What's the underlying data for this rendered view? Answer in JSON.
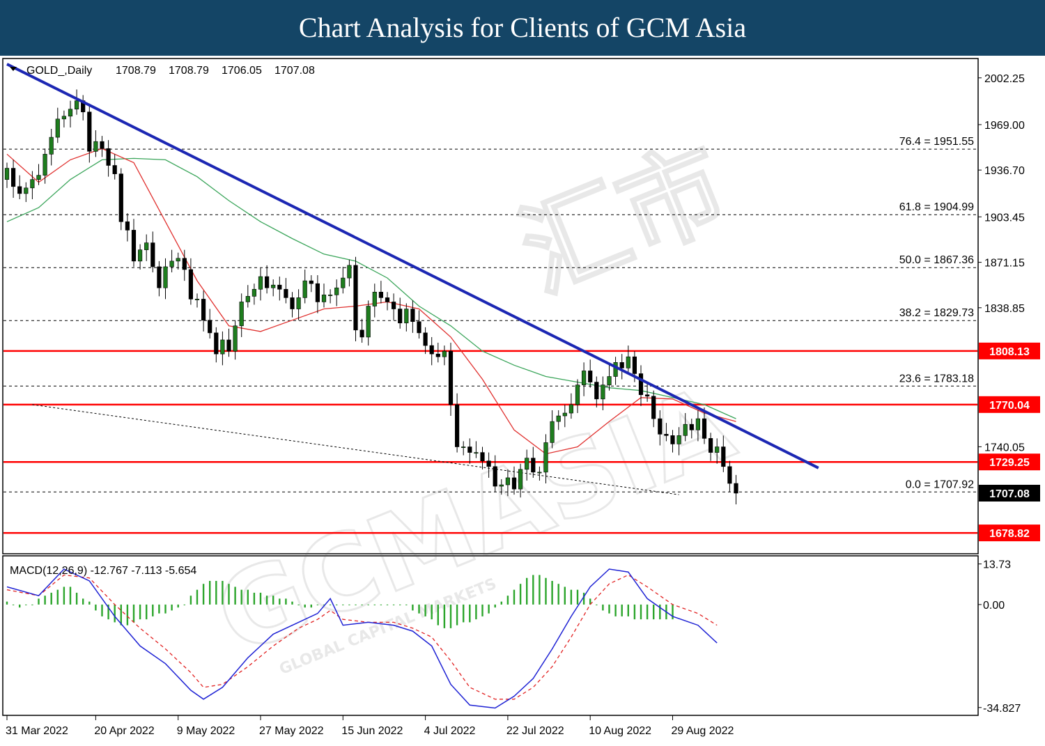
{
  "header": {
    "title": "Chart Analysis for Clients of GCM Asia"
  },
  "watermark": {
    "brand": "GCMASIA",
    "tagline": "GLOBAL CAPITAL MARKETS",
    "chinese": "汇市"
  },
  "colors": {
    "header_bg": "#144566",
    "bull": "#1e7d1e",
    "bear": "#000000",
    "ma_red": "#e0302e",
    "ma_green": "#3aa55a",
    "trendline": "#1c27b3",
    "support_red": "#ff0000",
    "macd_line": "#1e22d4",
    "signal_line": "#e22222",
    "histogram": "#2ba52b"
  },
  "chart_data": {
    "type": "candlestick",
    "symbol_label": "GOLD_,Daily",
    "ohlc_header": [
      "1708.79",
      "1708.79",
      "1706.05",
      "1707.08"
    ],
    "ylim": [
      1665,
      2015
    ],
    "y_ticks": [
      "2002.25",
      "1969.00",
      "1936.70",
      "1903.45",
      "1871.15",
      "1838.85",
      "1740.05"
    ],
    "x_ticks": [
      "31 Mar 2022",
      "20 Apr 2022",
      "9 May 2022",
      "27 May 2022",
      "15 Jun 2022",
      "4 Jul 2022",
      "22 Jul 2022",
      "10 Aug 2022",
      "29 Aug 2022"
    ],
    "x_tick_index": [
      0,
      14,
      27,
      40,
      53,
      66,
      79,
      92,
      105
    ],
    "fibonacci": [
      {
        "label": "76.4 = 1951.55",
        "value": 1951.55
      },
      {
        "label": "61.8 = 1904.99",
        "value": 1904.99
      },
      {
        "label": "50.0 = 1867.36",
        "value": 1867.36
      },
      {
        "label": "38.2 = 1829.73",
        "value": 1829.73
      },
      {
        "label": "23.6 = 1783.18",
        "value": 1783.18
      },
      {
        "label": "0.0 = 1707.92",
        "value": 1707.92
      }
    ],
    "support_resistance": [
      {
        "label": "1808.13",
        "value": 1808.13
      },
      {
        "label": "1770.04",
        "value": 1770.04
      },
      {
        "label": "1729.25",
        "value": 1729.25
      },
      {
        "label": "1678.82",
        "value": 1678.82
      }
    ],
    "last_price": {
      "label": "1707.08",
      "value": 1707.08
    },
    "trendline": [
      [
        0,
        2012
      ],
      [
        128,
        1725
      ]
    ],
    "dotted_trendline": [
      [
        4,
        1770
      ],
      [
        106,
        1706
      ]
    ],
    "closes": [
      1938,
      1925,
      1920,
      1924,
      1930,
      1933,
      1948,
      1960,
      1973,
      1975,
      1980,
      1986,
      1978,
      1950,
      1957,
      1952,
      1940,
      1934,
      1900,
      1894,
      1872,
      1880,
      1885,
      1868,
      1853,
      1868,
      1872,
      1874,
      1866,
      1845,
      1845,
      1830,
      1821,
      1806,
      1816,
      1808,
      1826,
      1843,
      1847,
      1852,
      1861,
      1853,
      1855,
      1852,
      1846,
      1838,
      1846,
      1858,
      1856,
      1843,
      1848,
      1848,
      1853,
      1860,
      1869,
      1823,
      1818,
      1840,
      1850,
      1846,
      1843,
      1838,
      1828,
      1838,
      1829,
      1821,
      1812,
      1806,
      1804,
      1808,
      1770,
      1740,
      1740,
      1736,
      1736,
      1730,
      1726,
      1712,
      1713,
      1718,
      1710,
      1724,
      1732,
      1722,
      1722,
      1743,
      1758,
      1762,
      1764,
      1770,
      1784,
      1794,
      1786,
      1774,
      1784,
      1790,
      1800,
      1796,
      1804,
      1792,
      1777,
      1776,
      1760,
      1749,
      1748,
      1742,
      1748,
      1756,
      1752,
      1760,
      1746,
      1736,
      1740,
      1726,
      1714,
      1707.08
    ],
    "ma_fast": [
      [
        0,
        1948
      ],
      [
        5,
        1928
      ],
      [
        10,
        1944
      ],
      [
        15,
        1952
      ],
      [
        20,
        1942
      ],
      [
        25,
        1900
      ],
      [
        30,
        1858
      ],
      [
        35,
        1826
      ],
      [
        40,
        1822
      ],
      [
        45,
        1830
      ],
      [
        50,
        1838
      ],
      [
        55,
        1840
      ],
      [
        60,
        1843
      ],
      [
        65,
        1838
      ],
      [
        70,
        1818
      ],
      [
        75,
        1788
      ],
      [
        80,
        1752
      ],
      [
        85,
        1735
      ],
      [
        90,
        1740
      ],
      [
        95,
        1758
      ],
      [
        100,
        1775
      ],
      [
        105,
        1774
      ],
      [
        110,
        1764
      ],
      [
        115,
        1758
      ]
    ],
    "ma_slow": [
      [
        0,
        1900
      ],
      [
        5,
        1910
      ],
      [
        10,
        1930
      ],
      [
        15,
        1944
      ],
      [
        20,
        1945
      ],
      [
        25,
        1944
      ],
      [
        30,
        1932
      ],
      [
        35,
        1915
      ],
      [
        40,
        1900
      ],
      [
        45,
        1888
      ],
      [
        50,
        1877
      ],
      [
        55,
        1872
      ],
      [
        60,
        1860
      ],
      [
        65,
        1840
      ],
      [
        70,
        1826
      ],
      [
        75,
        1808
      ],
      [
        80,
        1798
      ],
      [
        85,
        1790
      ],
      [
        90,
        1786
      ],
      [
        95,
        1782
      ],
      [
        100,
        1780
      ],
      [
        105,
        1775
      ],
      [
        110,
        1770
      ],
      [
        115,
        1760
      ]
    ],
    "macd": {
      "label": "MACD(12,26,9) -12.767 -7.113 -5.654",
      "ylim": [
        -37,
        16
      ],
      "y_ticks": [
        "13.73",
        "0.00",
        "-34.827"
      ],
      "macd_line": [
        [
          0,
          6
        ],
        [
          5,
          3
        ],
        [
          9,
          12
        ],
        [
          13,
          8
        ],
        [
          17,
          -4
        ],
        [
          21,
          -14
        ],
        [
          25,
          -20
        ],
        [
          29,
          -29
        ],
        [
          31,
          -32
        ],
        [
          34,
          -28
        ],
        [
          38,
          -18
        ],
        [
          42,
          -10
        ],
        [
          46,
          -6
        ],
        [
          49,
          -3
        ],
        [
          51,
          2
        ],
        [
          53,
          -7
        ],
        [
          57,
          -6
        ],
        [
          61,
          -7
        ],
        [
          64,
          -9
        ],
        [
          67,
          -14
        ],
        [
          70,
          -27
        ],
        [
          73,
          -34
        ],
        [
          77,
          -35
        ],
        [
          80,
          -31
        ],
        [
          83,
          -25
        ],
        [
          86,
          -15
        ],
        [
          89,
          -4
        ],
        [
          92,
          6
        ],
        [
          95,
          12
        ],
        [
          98,
          11
        ],
        [
          101,
          2
        ],
        [
          105,
          -4
        ],
        [
          109,
          -7
        ],
        [
          112,
          -13
        ]
      ],
      "signal_line": [
        [
          0,
          5
        ],
        [
          5,
          3
        ],
        [
          9,
          10
        ],
        [
          13,
          9
        ],
        [
          17,
          0
        ],
        [
          21,
          -8
        ],
        [
          25,
          -15
        ],
        [
          29,
          -23
        ],
        [
          31,
          -28
        ],
        [
          34,
          -27
        ],
        [
          38,
          -21
        ],
        [
          42,
          -14
        ],
        [
          46,
          -8
        ],
        [
          49,
          -5
        ],
        [
          51,
          -2
        ],
        [
          53,
          -5
        ],
        [
          57,
          -6
        ],
        [
          61,
          -6
        ],
        [
          64,
          -8
        ],
        [
          67,
          -11
        ],
        [
          70,
          -19
        ],
        [
          73,
          -28
        ],
        [
          77,
          -32
        ],
        [
          80,
          -32
        ],
        [
          83,
          -28
        ],
        [
          86,
          -21
        ],
        [
          89,
          -11
        ],
        [
          92,
          0
        ],
        [
          95,
          7
        ],
        [
          98,
          10
        ],
        [
          101,
          6
        ],
        [
          105,
          0
        ],
        [
          109,
          -3
        ],
        [
          112,
          -7
        ]
      ],
      "histogram": [
        1,
        0,
        -1,
        0,
        0,
        2,
        3,
        4,
        5,
        6,
        6,
        4,
        2,
        1,
        -2,
        -4,
        -5,
        -6,
        -7,
        -7,
        -6,
        -5,
        -5,
        -4,
        -3,
        -3,
        -2,
        -1,
        0,
        3,
        5,
        7,
        8,
        8,
        8,
        7,
        6,
        5,
        5,
        4,
        4,
        3,
        3,
        2,
        2,
        1,
        0,
        -1,
        -1,
        0,
        0,
        0,
        0,
        0,
        0,
        0,
        0,
        0,
        0,
        0,
        0,
        0,
        0,
        0,
        -2,
        -3,
        -4,
        -5,
        -7,
        -8,
        -8,
        -7,
        -6,
        -6,
        -5,
        -4,
        -3,
        -1,
        1,
        3,
        5,
        7,
        9,
        10,
        10,
        9,
        8,
        7,
        6,
        5,
        5,
        4,
        2,
        0,
        -2,
        -3,
        -4,
        -4,
        -4,
        -5,
        -5,
        -5,
        -5,
        -5,
        -5,
        -5
      ]
    }
  }
}
